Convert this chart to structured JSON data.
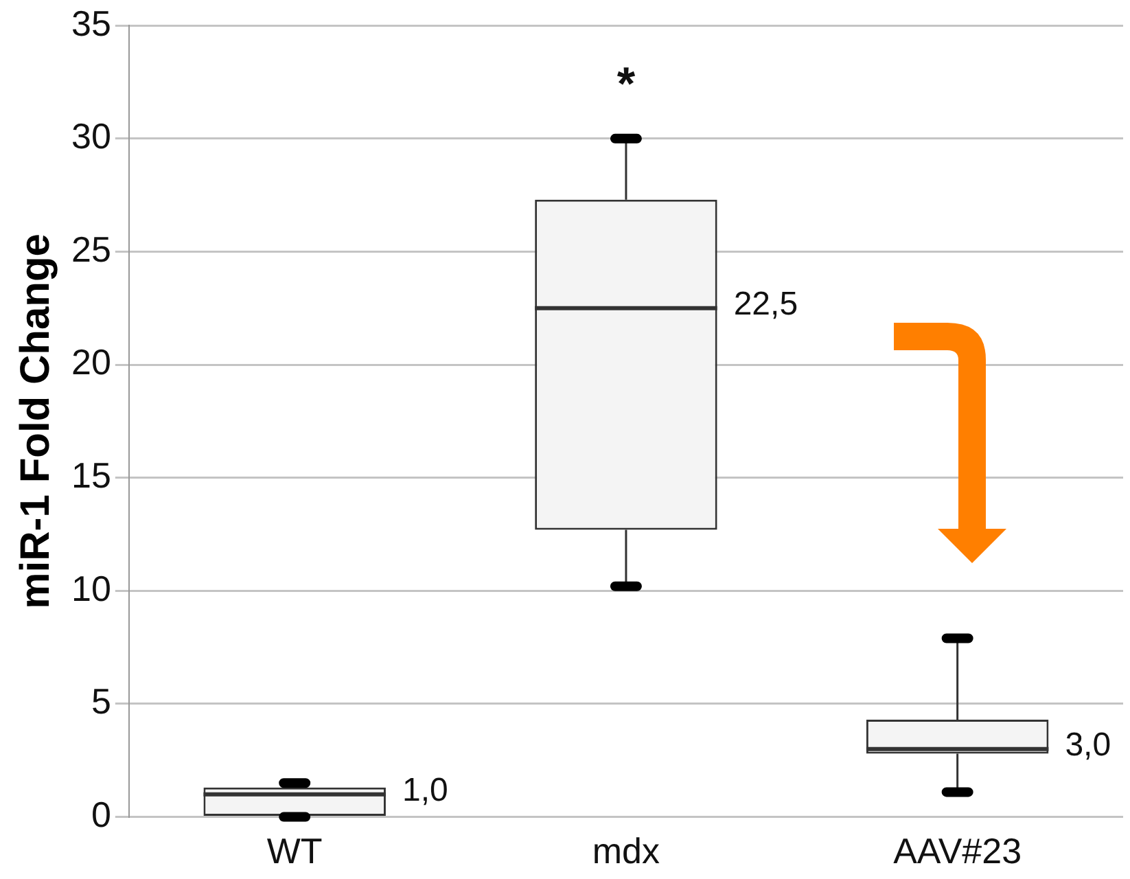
{
  "chart_data": {
    "type": "box",
    "ylabel": "miR-1 Fold Change",
    "categories": [
      "WT",
      "mdx",
      "AAV#23"
    ],
    "boxes": [
      {
        "low": 0,
        "q1": 0,
        "median": 1.0,
        "q3": 1.3,
        "high": 1.5
      },
      {
        "low": 10.2,
        "q1": 12.7,
        "median": 22.5,
        "q3": 27.3,
        "high": 30.0
      },
      {
        "low": 1.1,
        "q1": 2.8,
        "median": 3.0,
        "q3": 4.3,
        "high": 7.9
      }
    ],
    "ylim": [
      0,
      35
    ],
    "yticks": [
      0,
      5,
      10,
      15,
      20,
      25,
      30,
      35
    ],
    "grid": "y",
    "legend": false,
    "annotations": [
      "1,0",
      "22,5",
      "3,0",
      "*"
    ]
  }
}
